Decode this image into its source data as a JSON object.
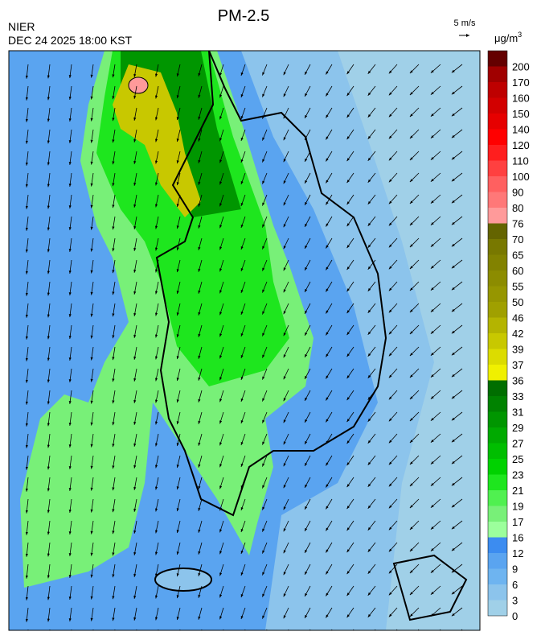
{
  "header": {
    "title": "PM-2.5",
    "agency": "NIER",
    "datetime": "DEC 24 2025 18:00 KST"
  },
  "wind_legend": {
    "label": "5 m/s"
  },
  "colorbar": {
    "unit": "μg/m",
    "unit_sup": "3",
    "labels": [
      0,
      3,
      6,
      9,
      12,
      16,
      17,
      19,
      21,
      23,
      25,
      27,
      29,
      31,
      33,
      36,
      37,
      39,
      42,
      46,
      50,
      55,
      60,
      65,
      70,
      76,
      80,
      90,
      100,
      110,
      120,
      140,
      150,
      160,
      170,
      200
    ],
    "colors": [
      "#a0d0e8",
      "#8cc4ec",
      "#6eb4f0",
      "#5aa4f0",
      "#3c8cf0",
      "#9cff9c",
      "#78f078",
      "#50f050",
      "#1ee61e",
      "#00d200",
      "#00be00",
      "#00aa00",
      "#009600",
      "#008200",
      "#006e00",
      "#f0f000",
      "#dcdc00",
      "#c8c800",
      "#b4b400",
      "#a0a000",
      "#969600",
      "#8c8c00",
      "#828200",
      "#787800",
      "#646400",
      "#ff9a9a",
      "#ff7878",
      "#ff6060",
      "#ff4040",
      "#ff1e1e",
      "#ff0000",
      "#e60000",
      "#d20000",
      "#be0000",
      "#a00000",
      "#640000"
    ]
  }
}
